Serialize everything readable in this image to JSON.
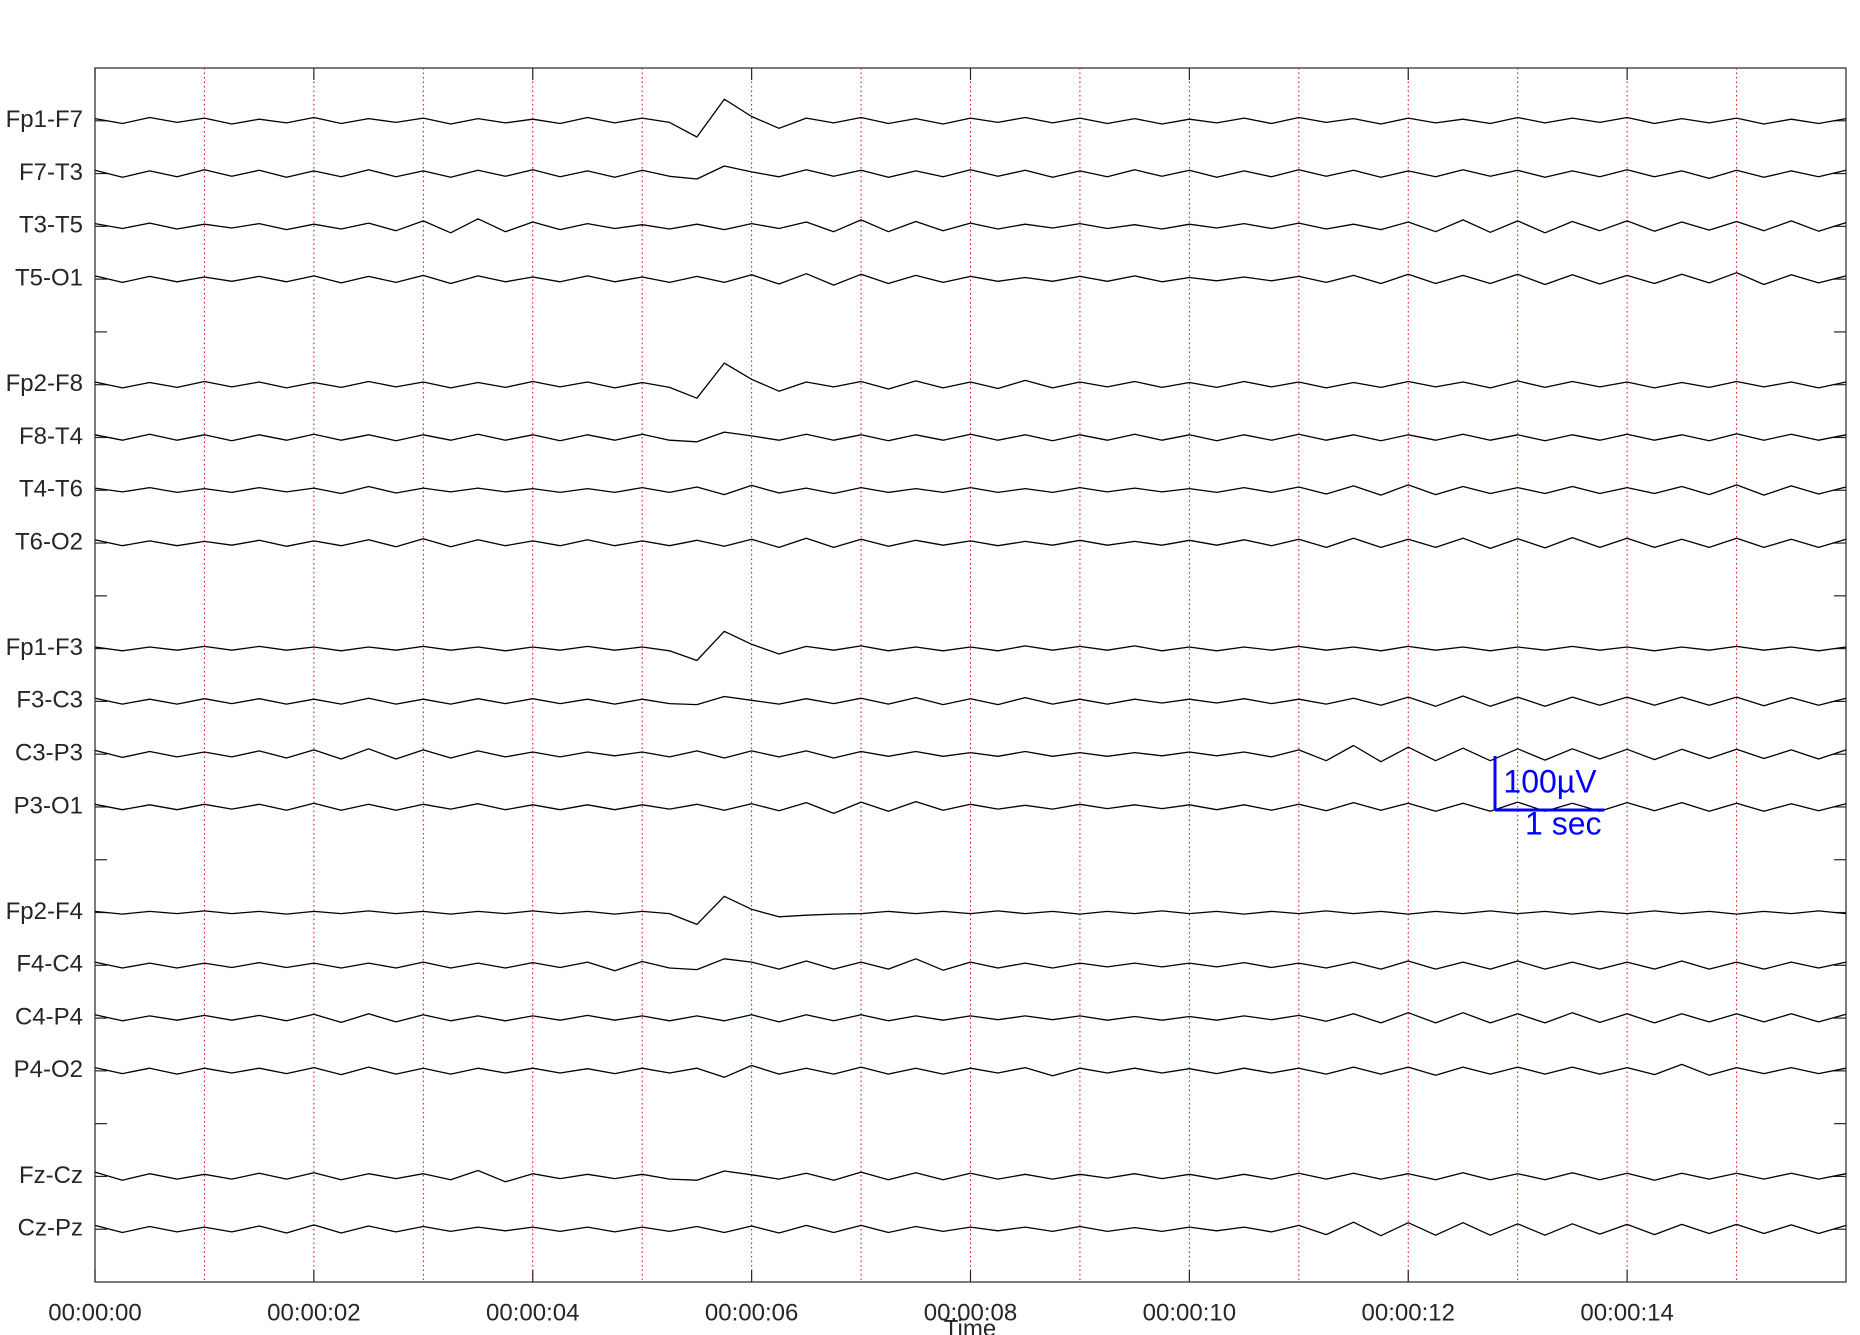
{
  "chart_data": {
    "type": "eeg",
    "x_label": "Time",
    "xlim": [
      0,
      16
    ],
    "xticks": [
      {
        "value": 0,
        "label": "00:00:00"
      },
      {
        "value": 2,
        "label": "00:00:02"
      },
      {
        "value": 4,
        "label": "00:00:04"
      },
      {
        "value": 6,
        "label": "00:00:06"
      },
      {
        "value": 8,
        "label": "00:00:08"
      },
      {
        "value": 10,
        "label": "00:00:10"
      },
      {
        "value": 12,
        "label": "00:00:12"
      },
      {
        "value": 14,
        "label": "00:00:14"
      }
    ],
    "minor_xticks": [
      1,
      2,
      3,
      4,
      5,
      6,
      7,
      8,
      9,
      10,
      11,
      12,
      13,
      14,
      15
    ],
    "grid_color": "#e00000",
    "categories": [
      "Fp1-F7",
      "F7-T3",
      "T3-T5",
      "T5-O1",
      null,
      "Fp2-F8",
      "F8-T4",
      "T4-T6",
      "T6-O2",
      null,
      "Fp1-F3",
      "F3-C3",
      "C3-P3",
      "P3-O1",
      null,
      "Fp2-F4",
      "F4-C4",
      "C4-P4",
      "P4-O2",
      null,
      "Fz-Cz",
      "Cz-Pz"
    ],
    "x": [
      0,
      0.25,
      0.5,
      0.75,
      1,
      1.25,
      1.5,
      1.75,
      2,
      2.25,
      2.5,
      2.75,
      3,
      3.25,
      3.5,
      3.75,
      4,
      4.25,
      4.5,
      4.75,
      5,
      5.25,
      5.5,
      5.75,
      6,
      6.25,
      6.5,
      6.75,
      7,
      7.25,
      7.5,
      7.75,
      8,
      8.25,
      8.5,
      8.75,
      9,
      9.25,
      9.5,
      9.75,
      10,
      10.25,
      10.5,
      10.75,
      11,
      11.25,
      11.5,
      11.75,
      12,
      12.25,
      12.5,
      12.75,
      13,
      13.25,
      13.5,
      13.75,
      14,
      14.25,
      14.5,
      14.75,
      15,
      15.25,
      15.5,
      15.75,
      16
    ],
    "color": "#000000",
    "series": [
      {
        "values": [
          4,
          -5,
          6,
          -3,
          5,
          -6,
          3,
          -4,
          6,
          -5,
          4,
          -3,
          5,
          -6,
          4,
          -4,
          3,
          -5,
          6,
          -4,
          5,
          -3,
          -30,
          40,
          8,
          -14,
          5,
          -4,
          6,
          -5,
          4,
          -6,
          5,
          -3,
          6,
          -4,
          5,
          -5,
          4,
          -6,
          3,
          -4,
          5,
          -5,
          6,
          -3,
          4,
          -6,
          5,
          -4,
          3,
          -5,
          6,
          -4,
          5,
          -3,
          6,
          -5,
          4,
          -4,
          5,
          -6,
          3,
          -5,
          4
        ]
      },
      {
        "values": [
          6,
          -7,
          5,
          -6,
          7,
          -5,
          6,
          -7,
          5,
          -6,
          7,
          -6,
          5,
          -7,
          6,
          -5,
          7,
          -6,
          5,
          -7,
          6,
          -5,
          -10,
          14,
          3,
          -6,
          7,
          -5,
          6,
          -7,
          5,
          -6,
          7,
          -5,
          6,
          -7,
          5,
          -6,
          7,
          -5,
          6,
          -7,
          5,
          -6,
          7,
          -5,
          6,
          -7,
          5,
          -6,
          7,
          -5,
          6,
          -7,
          5,
          -6,
          7,
          -6,
          5,
          -9,
          6,
          -7,
          5,
          -6,
          6
        ]
      },
      {
        "values": [
          5,
          -4,
          6,
          -5,
          4,
          -3,
          5,
          -6,
          4,
          -5,
          6,
          -8,
          10,
          -12,
          14,
          -10,
          8,
          -6,
          5,
          -4,
          3,
          -5,
          4,
          -6,
          5,
          -4,
          8,
          -10,
          12,
          -10,
          9,
          -8,
          6,
          -5,
          4,
          -3,
          5,
          -4,
          3,
          -5,
          4,
          -3,
          5,
          -4,
          6,
          -5,
          4,
          -6,
          8,
          -10,
          12,
          -11,
          10,
          -12,
          9,
          -8,
          10,
          -9,
          8,
          -7,
          9,
          -8,
          10,
          -9,
          7
        ]
      },
      {
        "values": [
          6,
          -6,
          5,
          -5,
          4,
          -4,
          5,
          -5,
          6,
          -7,
          5,
          -6,
          7,
          -8,
          6,
          -5,
          4,
          -5,
          6,
          -5,
          4,
          -6,
          5,
          -6,
          8,
          -9,
          10,
          -11,
          9,
          -8,
          7,
          -6,
          5,
          -4,
          3,
          -4,
          5,
          -4,
          6,
          -5,
          3,
          -3,
          4,
          -3,
          5,
          -6,
          7,
          -8,
          9,
          -8,
          7,
          -8,
          9,
          -10,
          8,
          -9,
          7,
          -8,
          9,
          -7,
          12,
          -10,
          8,
          -7,
          6
        ]
      },
      {
        "values": [
          5,
          -6,
          4,
          -5,
          6,
          -4,
          5,
          -6,
          4,
          -5,
          6,
          -4,
          5,
          -6,
          4,
          -5,
          6,
          -4,
          5,
          -6,
          4,
          -5,
          -25,
          40,
          10,
          -12,
          5,
          -4,
          6,
          -8,
          7,
          -6,
          5,
          -7,
          8,
          -6,
          5,
          -4,
          6,
          -5,
          4,
          -5,
          6,
          -4,
          5,
          -6,
          4,
          -5,
          6,
          -4,
          5,
          -6,
          7,
          -5,
          6,
          -4,
          5,
          -6,
          4,
          -5,
          6,
          -4,
          5,
          -6,
          5
        ]
      },
      {
        "values": [
          5,
          -5,
          6,
          -5,
          5,
          -6,
          5,
          -5,
          6,
          -5,
          5,
          -6,
          5,
          -5,
          6,
          -5,
          5,
          -6,
          5,
          -5,
          6,
          -5,
          -8,
          10,
          3,
          -5,
          6,
          -5,
          5,
          -6,
          5,
          -5,
          6,
          -5,
          5,
          -6,
          5,
          -5,
          6,
          -5,
          5,
          -6,
          5,
          -5,
          6,
          -5,
          5,
          -6,
          5,
          -5,
          6,
          -5,
          5,
          -6,
          5,
          -5,
          6,
          -5,
          5,
          -6,
          7,
          -5,
          6,
          -5,
          5
        ]
      },
      {
        "values": [
          4,
          -3,
          5,
          -4,
          3,
          -4,
          5,
          -3,
          4,
          -6,
          7,
          -5,
          4,
          -3,
          4,
          -3,
          3,
          -4,
          3,
          -4,
          5,
          -4,
          6,
          -8,
          9,
          -5,
          4,
          -6,
          5,
          -4,
          3,
          -4,
          5,
          -4,
          3,
          -4,
          5,
          -3,
          4,
          -3,
          3,
          -4,
          5,
          -4,
          6,
          -7,
          8,
          -9,
          10,
          -8,
          7,
          -6,
          5,
          -6,
          7,
          -6,
          5,
          -6,
          7,
          -8,
          10,
          -9,
          8,
          -7,
          6
        ]
      },
      {
        "values": [
          6,
          -5,
          4,
          -5,
          3,
          -4,
          5,
          -6,
          4,
          -5,
          6,
          -7,
          8,
          -7,
          6,
          -5,
          4,
          -5,
          6,
          -5,
          4,
          -5,
          5,
          -6,
          7,
          -8,
          9,
          -8,
          7,
          -6,
          5,
          -4,
          4,
          -5,
          3,
          -4,
          5,
          -4,
          3,
          -4,
          5,
          -4,
          6,
          -5,
          7,
          -8,
          9,
          -8,
          7,
          -8,
          9,
          -10,
          8,
          -9,
          10,
          -8,
          9,
          -8,
          7,
          -8,
          9,
          -8,
          7,
          -8,
          7
        ]
      },
      {
        "values": [
          3,
          -4,
          3,
          -3,
          4,
          -3,
          4,
          -3,
          3,
          -4,
          3,
          -3,
          4,
          -3,
          3,
          -4,
          3,
          -3,
          4,
          -3,
          3,
          -4,
          -22,
          32,
          8,
          -10,
          4,
          -3,
          5,
          -4,
          3,
          -4,
          3,
          -4,
          5,
          -3,
          4,
          -3,
          5,
          -4,
          3,
          -4,
          3,
          -3,
          4,
          -3,
          3,
          -4,
          4,
          -3,
          3,
          -4,
          3,
          -3,
          4,
          -3,
          3,
          -4,
          3,
          -3,
          4,
          -3,
          3,
          -4,
          3
        ]
      },
      {
        "values": [
          6,
          -5,
          4,
          -5,
          5,
          -4,
          5,
          -5,
          4,
          -5,
          6,
          -5,
          4,
          -5,
          5,
          -4,
          5,
          -4,
          4,
          -5,
          4,
          -4,
          -6,
          9,
          2,
          -5,
          5,
          -4,
          6,
          -5,
          7,
          -6,
          5,
          -6,
          7,
          -5,
          4,
          -5,
          4,
          -3,
          4,
          -3,
          5,
          -4,
          4,
          -5,
          6,
          -7,
          8,
          -9,
          10,
          -9,
          8,
          -9,
          8,
          -7,
          8,
          -7,
          8,
          -7,
          8,
          -8,
          7,
          -7,
          6
        ]
      },
      {
        "values": [
          7,
          -6,
          5,
          -5,
          4,
          -5,
          6,
          -7,
          8,
          -9,
          10,
          -9,
          8,
          -7,
          6,
          -5,
          4,
          -5,
          4,
          -3,
          4,
          -5,
          6,
          -7,
          6,
          -5,
          6,
          -7,
          5,
          -4,
          5,
          -4,
          3,
          -4,
          5,
          -4,
          3,
          -4,
          3,
          -3,
          4,
          -3,
          4,
          -5,
          8,
          -12,
          16,
          -14,
          13,
          -12,
          11,
          -12,
          10,
          -11,
          10,
          -9,
          9,
          -10,
          9,
          -8,
          9,
          -8,
          8,
          -9,
          8
        ]
      },
      {
        "values": [
          5,
          -5,
          4,
          -5,
          5,
          -4,
          5,
          -6,
          7,
          -6,
          5,
          -6,
          5,
          -4,
          6,
          -5,
          4,
          -5,
          4,
          -5,
          4,
          -4,
          5,
          -6,
          6,
          -7,
          8,
          -12,
          9,
          -8,
          10,
          -6,
          5,
          -4,
          3,
          -4,
          5,
          -3,
          4,
          -3,
          4,
          -5,
          4,
          -6,
          5,
          -7,
          8,
          -6,
          7,
          -8,
          7,
          -8,
          9,
          -8,
          7,
          -8,
          8,
          -7,
          8,
          -8,
          7,
          -8,
          6,
          -7,
          6
        ]
      },
      {
        "values": [
          2,
          -3,
          2,
          -2,
          3,
          -2,
          2,
          -3,
          2,
          -2,
          3,
          -2,
          2,
          -3,
          2,
          -2,
          3,
          -2,
          2,
          -3,
          2,
          -2,
          -22,
          30,
          6,
          -8,
          -5,
          -3,
          -2,
          2,
          -2,
          2,
          -2,
          3,
          -2,
          2,
          -3,
          2,
          -2,
          3,
          -2,
          2,
          -3,
          2,
          -2,
          3,
          -2,
          2,
          -3,
          2,
          -2,
          3,
          -2,
          2,
          -3,
          2,
          -2,
          3,
          -2,
          2,
          -3,
          2,
          -2,
          3,
          -2
        ]
      },
      {
        "values": [
          6,
          -5,
          4,
          -5,
          4,
          -4,
          5,
          -4,
          4,
          -5,
          4,
          -5,
          6,
          -5,
          4,
          -5,
          5,
          -4,
          6,
          -10,
          7,
          -5,
          -8,
          12,
          6,
          -7,
          8,
          -7,
          6,
          -7,
          12,
          -9,
          6,
          -5,
          4,
          -5,
          4,
          -3,
          4,
          -3,
          4,
          -3,
          5,
          -4,
          4,
          -5,
          6,
          -7,
          8,
          -7,
          6,
          -7,
          8,
          -7,
          6,
          -7,
          6,
          -7,
          8,
          -7,
          6,
          -7,
          6,
          -5,
          6
        ]
      },
      {
        "values": [
          6,
          -5,
          4,
          -4,
          5,
          -4,
          5,
          -5,
          7,
          -8,
          8,
          -7,
          6,
          -5,
          4,
          -5,
          4,
          -4,
          5,
          -4,
          4,
          -5,
          4,
          -5,
          6,
          -7,
          6,
          -5,
          6,
          -5,
          4,
          -4,
          4,
          -3,
          4,
          -3,
          4,
          -4,
          3,
          -4,
          3,
          -4,
          4,
          -3,
          5,
          -6,
          8,
          -9,
          10,
          -9,
          10,
          -9,
          8,
          -9,
          10,
          -8,
          8,
          -9,
          8,
          -7,
          8,
          -7,
          8,
          -7,
          7
        ]
      },
      {
        "values": [
          6,
          -5,
          5,
          -6,
          5,
          -4,
          5,
          -5,
          6,
          -7,
          7,
          -6,
          5,
          -6,
          5,
          -4,
          5,
          -4,
          4,
          -5,
          5,
          -4,
          5,
          -12,
          10,
          -6,
          5,
          -6,
          7,
          -6,
          5,
          -6,
          5,
          -4,
          6,
          -9,
          5,
          -4,
          5,
          -4,
          4,
          -5,
          5,
          -4,
          5,
          -6,
          7,
          -6,
          7,
          -8,
          7,
          -6,
          7,
          -6,
          7,
          -6,
          6,
          -7,
          12,
          -8,
          6,
          -5,
          6,
          -5,
          5
        ]
      },
      {
        "values": [
          8,
          -7,
          5,
          -5,
          4,
          -5,
          6,
          -5,
          7,
          -6,
          5,
          -4,
          5,
          -6,
          11,
          -10,
          5,
          -4,
          4,
          -4,
          4,
          -5,
          -7,
          10,
          3,
          -5,
          6,
          -7,
          8,
          -6,
          7,
          -6,
          6,
          -5,
          4,
          -5,
          4,
          -3,
          5,
          -4,
          4,
          -5,
          4,
          -5,
          6,
          -5,
          6,
          -5,
          5,
          -6,
          7,
          -6,
          5,
          -6,
          7,
          -6,
          6,
          -7,
          6,
          -5,
          6,
          -5,
          6,
          -5,
          5
        ]
      },
      {
        "values": [
          7,
          -6,
          5,
          -5,
          4,
          -5,
          6,
          -7,
          8,
          -7,
          6,
          -5,
          5,
          -4,
          4,
          -3,
          4,
          -4,
          4,
          -5,
          4,
          -4,
          5,
          -6,
          6,
          -7,
          7,
          -6,
          7,
          -6,
          5,
          -4,
          4,
          -3,
          4,
          -4,
          5,
          -4,
          3,
          -4,
          4,
          -3,
          4,
          -5,
          7,
          -10,
          13,
          -12,
          12,
          -11,
          12,
          -11,
          10,
          -11,
          10,
          -9,
          9,
          -10,
          9,
          -8,
          9,
          -8,
          8,
          -8,
          7
        ]
      }
    ],
    "scale_bar": {
      "color": "#0000ff",
      "amplitude": 100,
      "amplitude_label": "100µV",
      "duration": 1,
      "duration_label": "1 sec"
    }
  }
}
